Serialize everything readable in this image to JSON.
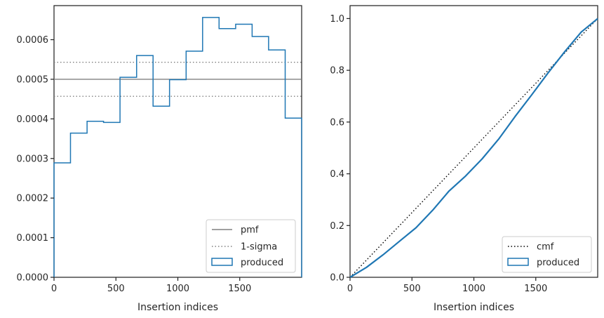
{
  "chart_data": [
    {
      "type": "step-histogram",
      "xlabel": "Insertion indices",
      "ylabel": "",
      "xlim": [
        0,
        2000
      ],
      "ylim": [
        0,
        0.000686
      ],
      "xticks": [
        0,
        500,
        1000,
        1500
      ],
      "xtick_labels": [
        "0",
        "500",
        "1000",
        "1500"
      ],
      "yticks": [
        0,
        0.0001,
        0.0002,
        0.0003,
        0.0004,
        0.0005,
        0.0006
      ],
      "ytick_labels": [
        "0.0000",
        "0.0001",
        "0.0002",
        "0.0003",
        "0.0004",
        "0.0005",
        "0.0006"
      ],
      "legend_position": "bottom-right",
      "pmf": {
        "name": "pmf",
        "value": 0.0005,
        "color": "#808080"
      },
      "sigma": {
        "name": "1-sigma",
        "values": [
          0.000543,
          0.000457
        ],
        "color": "#808080"
      },
      "produced": {
        "name": "produced",
        "color": "#1f77b4",
        "bin_edges": [
          0,
          133,
          267,
          400,
          533,
          667,
          800,
          933,
          1067,
          1200,
          1333,
          1467,
          1600,
          1733,
          1867,
          2000
        ],
        "values": [
          0.000289,
          0.000364,
          0.000394,
          0.000391,
          0.000505,
          0.00056,
          0.000432,
          0.000499,
          0.000571,
          0.000656,
          0.000628,
          0.000639,
          0.000608,
          0.000574,
          0.000402
        ]
      }
    },
    {
      "type": "line",
      "xlabel": "Insertion indices",
      "ylabel": "",
      "xlim": [
        0,
        2000
      ],
      "ylim": [
        0,
        1.05
      ],
      "xticks": [
        0,
        500,
        1000,
        1500
      ],
      "xtick_labels": [
        "0",
        "500",
        "1000",
        "1500"
      ],
      "yticks": [
        0,
        0.2,
        0.4,
        0.6,
        0.8,
        1.0
      ],
      "ytick_labels": [
        "0.0",
        "0.2",
        "0.4",
        "0.6",
        "0.8",
        "1.0"
      ],
      "legend_position": "bottom-right",
      "cmf": {
        "name": "cmf",
        "x": [
          0,
          2000
        ],
        "y": [
          0,
          1.0
        ],
        "color": "#000000"
      },
      "produced": {
        "name": "produced",
        "color": "#1f77b4",
        "x": [
          0,
          133,
          267,
          400,
          533,
          667,
          800,
          933,
          1067,
          1200,
          1333,
          1467,
          1600,
          1733,
          1867,
          2000
        ],
        "y": [
          0,
          0.0385,
          0.087,
          0.1396,
          0.1917,
          0.259,
          0.3337,
          0.3913,
          0.4578,
          0.5339,
          0.6214,
          0.7051,
          0.7903,
          0.8713,
          0.9478,
          1.0
        ]
      }
    }
  ]
}
